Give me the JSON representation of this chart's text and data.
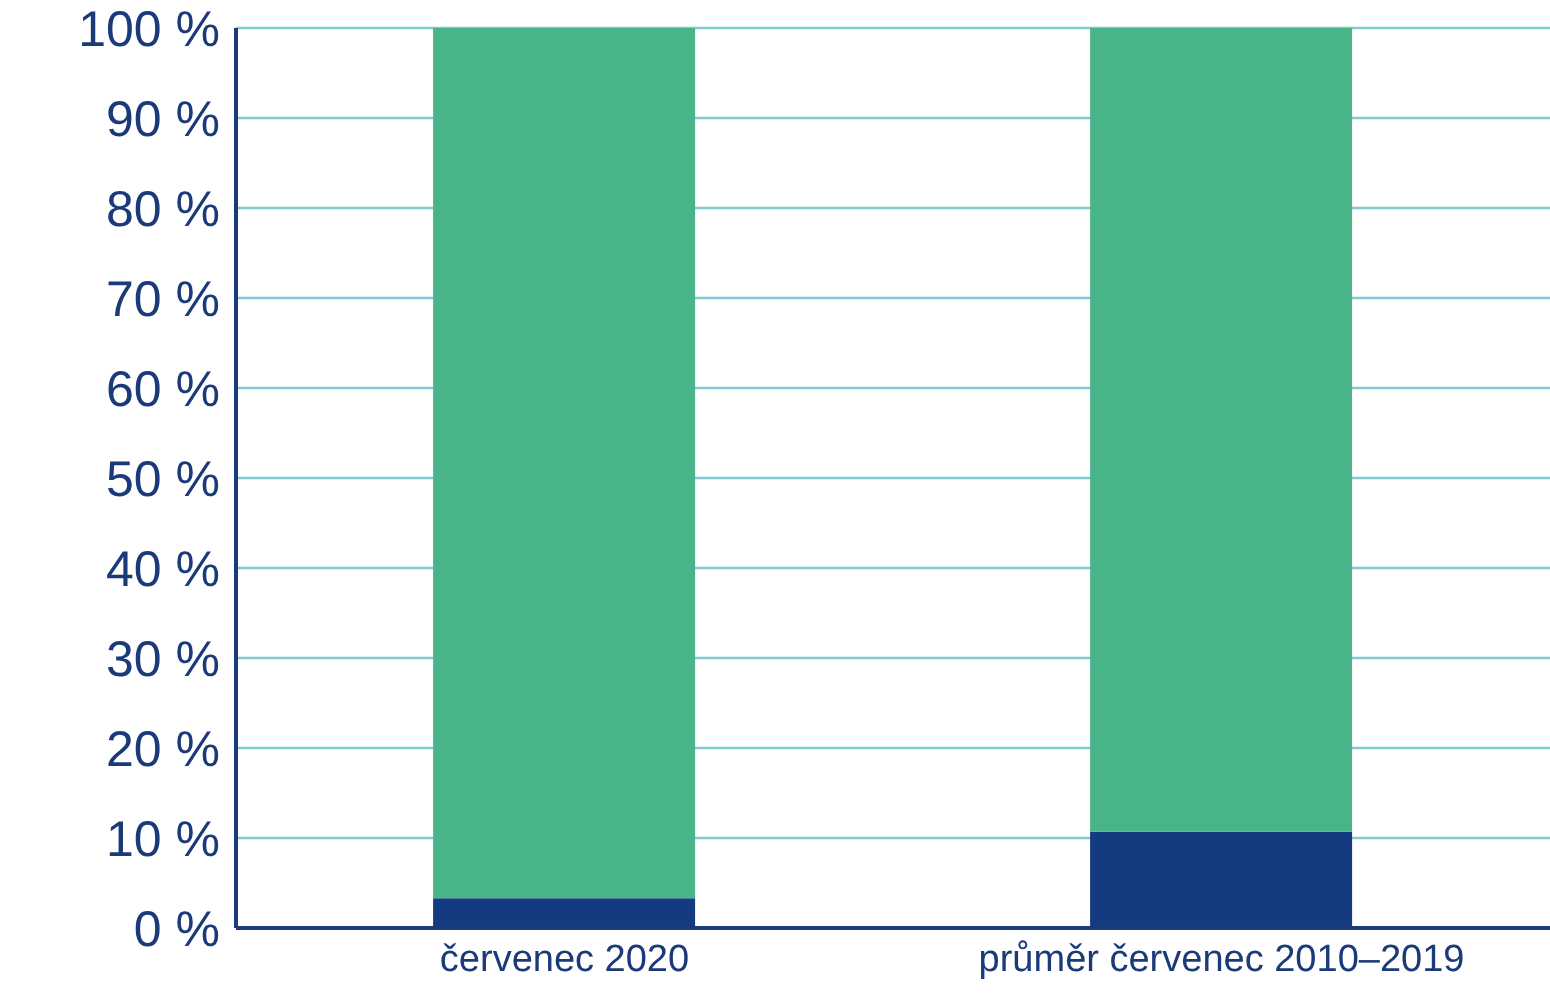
{
  "chart_data": {
    "type": "bar",
    "stacked": true,
    "categories": [
      "červenec 2020",
      "průměr červenec 2010–2019"
    ],
    "series": [
      {
        "color": "#143a80",
        "values": [
          3.3,
          10.7
        ]
      },
      {
        "color": "#48b487",
        "values": [
          96.7,
          89.3
        ]
      }
    ],
    "ylim": [
      0,
      100
    ],
    "yticks": [
      {
        "value": 0,
        "label": "0 %"
      },
      {
        "value": 10,
        "label": "10 %"
      },
      {
        "value": 20,
        "label": "20 %"
      },
      {
        "value": 30,
        "label": "30 %"
      },
      {
        "value": 40,
        "label": "40 %"
      },
      {
        "value": 50,
        "label": "50 %"
      },
      {
        "value": 60,
        "label": "60 %"
      },
      {
        "value": 70,
        "label": "70 %"
      },
      {
        "value": 80,
        "label": "80 %"
      },
      {
        "value": 90,
        "label": "90 %"
      },
      {
        "value": 100,
        "label": "100 %"
      }
    ],
    "grid": "y"
  }
}
